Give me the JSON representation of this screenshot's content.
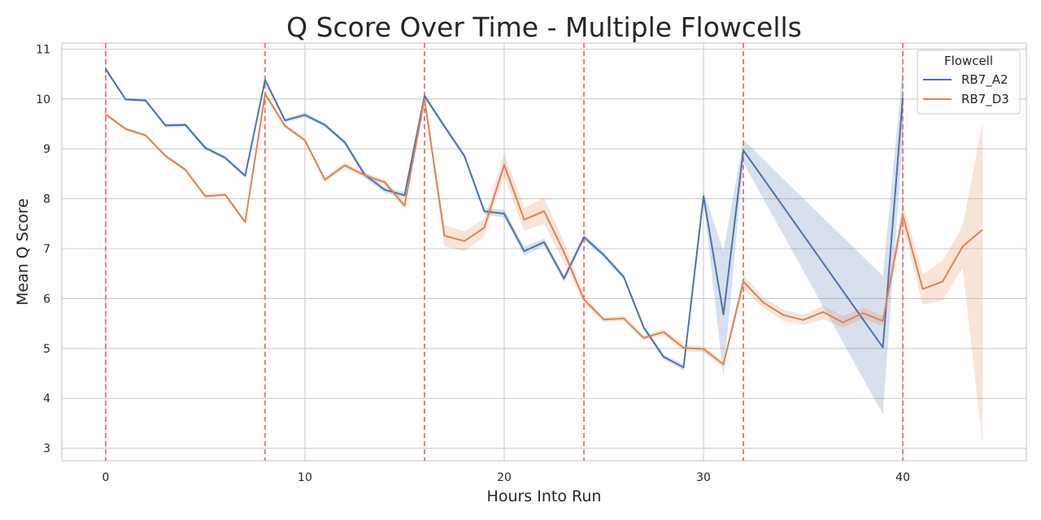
{
  "chart_data": {
    "type": "line",
    "title": "Q Score Over Time - Multiple Flowcells",
    "xlabel": "Hours Into Run",
    "ylabel": "Mean Q Score",
    "xlim": [
      -2.2,
      46.2
    ],
    "ylim": [
      2.75,
      11.12
    ],
    "xticks": [
      0,
      10,
      20,
      30,
      40
    ],
    "yticks": [
      3,
      4,
      5,
      6,
      7,
      8,
      9,
      10,
      11
    ],
    "grid": true,
    "legend": {
      "title": "Flowcell",
      "placement": "top-right"
    },
    "vlines": {
      "x": [
        0,
        8,
        16,
        24,
        32,
        40
      ],
      "color": "#e8625a",
      "style": "dashed"
    },
    "series": [
      {
        "name": "RB7_A2",
        "color": "#4c72b0",
        "points": [
          [
            0,
            10.6,
            10.55,
            10.65
          ],
          [
            1,
            9.99,
            9.96,
            10.02
          ],
          [
            2,
            9.97,
            9.94,
            10.0
          ],
          [
            3,
            9.47,
            9.43,
            9.51
          ],
          [
            4,
            9.48,
            9.44,
            9.52
          ],
          [
            5,
            9.02,
            8.98,
            9.06
          ],
          [
            6,
            8.82,
            8.78,
            8.86
          ],
          [
            7,
            8.46,
            8.42,
            8.5
          ],
          [
            8,
            10.38,
            10.33,
            10.43
          ],
          [
            9,
            9.57,
            9.53,
            9.61
          ],
          [
            10,
            9.68,
            9.63,
            9.73
          ],
          [
            11,
            9.48,
            9.44,
            9.52
          ],
          [
            12,
            9.13,
            9.08,
            9.18
          ],
          [
            13,
            8.48,
            8.42,
            8.54
          ],
          [
            14,
            8.18,
            8.12,
            8.24
          ],
          [
            15,
            8.07,
            8.01,
            8.13
          ],
          [
            16,
            10.06,
            10.01,
            10.11
          ],
          [
            17,
            9.45,
            9.4,
            9.5
          ],
          [
            18,
            8.86,
            8.81,
            8.91
          ],
          [
            19,
            7.75,
            7.69,
            7.81
          ],
          [
            20,
            7.7,
            7.62,
            7.78
          ],
          [
            21,
            6.95,
            6.86,
            7.04
          ],
          [
            22,
            7.13,
            7.06,
            7.2
          ],
          [
            23,
            6.4,
            6.33,
            6.47
          ],
          [
            24,
            7.23,
            7.17,
            7.29
          ],
          [
            25,
            6.87,
            6.82,
            6.92
          ],
          [
            26,
            6.43,
            6.38,
            6.48
          ],
          [
            27,
            5.42,
            5.37,
            5.47
          ],
          [
            28,
            4.83,
            4.78,
            4.88
          ],
          [
            29,
            4.62,
            4.56,
            4.68
          ],
          [
            30,
            8.05,
            7.95,
            8.15
          ],
          [
            31,
            5.68,
            4.45,
            6.95
          ],
          [
            32,
            8.97,
            8.72,
            9.18
          ],
          [
            39,
            5.02,
            3.68,
            6.45
          ],
          [
            40,
            10.03,
            9.2,
            10.62
          ]
        ]
      },
      {
        "name": "RB7_D3",
        "color": "#dd8452",
        "points": [
          [
            0,
            9.69,
            9.65,
            9.73
          ],
          [
            1,
            9.4,
            9.37,
            9.43
          ],
          [
            2,
            9.27,
            9.24,
            9.3
          ],
          [
            3,
            8.86,
            8.82,
            8.9
          ],
          [
            4,
            8.58,
            8.54,
            8.62
          ],
          [
            5,
            8.05,
            8.01,
            8.09
          ],
          [
            6,
            8.08,
            8.04,
            8.12
          ],
          [
            7,
            7.53,
            7.49,
            7.57
          ],
          [
            8,
            10.1,
            10.05,
            10.15
          ],
          [
            9,
            9.46,
            9.42,
            9.5
          ],
          [
            10,
            9.17,
            9.13,
            9.21
          ],
          [
            11,
            8.38,
            8.33,
            8.43
          ],
          [
            12,
            8.67,
            8.62,
            8.72
          ],
          [
            13,
            8.47,
            8.42,
            8.52
          ],
          [
            14,
            8.33,
            8.27,
            8.39
          ],
          [
            15,
            7.86,
            7.79,
            7.93
          ],
          [
            16,
            10.0,
            9.93,
            10.07
          ],
          [
            17,
            7.26,
            7.05,
            7.47
          ],
          [
            18,
            7.15,
            6.95,
            7.35
          ],
          [
            19,
            7.42,
            7.25,
            7.6
          ],
          [
            20,
            8.68,
            8.45,
            8.9
          ],
          [
            21,
            7.58,
            7.35,
            7.82
          ],
          [
            22,
            7.75,
            7.5,
            8.02
          ],
          [
            23,
            6.93,
            6.72,
            7.15
          ],
          [
            24,
            5.98,
            5.9,
            6.06
          ],
          [
            25,
            5.58,
            5.53,
            5.63
          ],
          [
            26,
            5.6,
            5.55,
            5.65
          ],
          [
            27,
            5.21,
            5.16,
            5.26
          ],
          [
            28,
            5.33,
            5.27,
            5.39
          ],
          [
            29,
            5.01,
            4.95,
            5.07
          ],
          [
            30,
            4.99,
            4.93,
            5.05
          ],
          [
            31,
            4.68,
            4.62,
            4.74
          ],
          [
            32,
            6.34,
            6.18,
            6.48
          ],
          [
            33,
            5.92,
            5.82,
            6.02
          ],
          [
            34,
            5.67,
            5.55,
            5.78
          ],
          [
            35,
            5.57,
            5.47,
            5.67
          ],
          [
            36,
            5.73,
            5.58,
            5.86
          ],
          [
            37,
            5.52,
            5.42,
            5.65
          ],
          [
            38,
            5.71,
            5.6,
            5.82
          ],
          [
            39,
            5.55,
            5.45,
            5.65
          ],
          [
            40,
            7.67,
            7.45,
            7.92
          ],
          [
            41,
            6.19,
            5.88,
            6.48
          ],
          [
            42,
            6.34,
            5.96,
            6.76
          ],
          [
            43,
            7.04,
            6.62,
            7.45
          ],
          [
            44,
            7.38,
            3.08,
            9.52
          ]
        ]
      }
    ]
  }
}
